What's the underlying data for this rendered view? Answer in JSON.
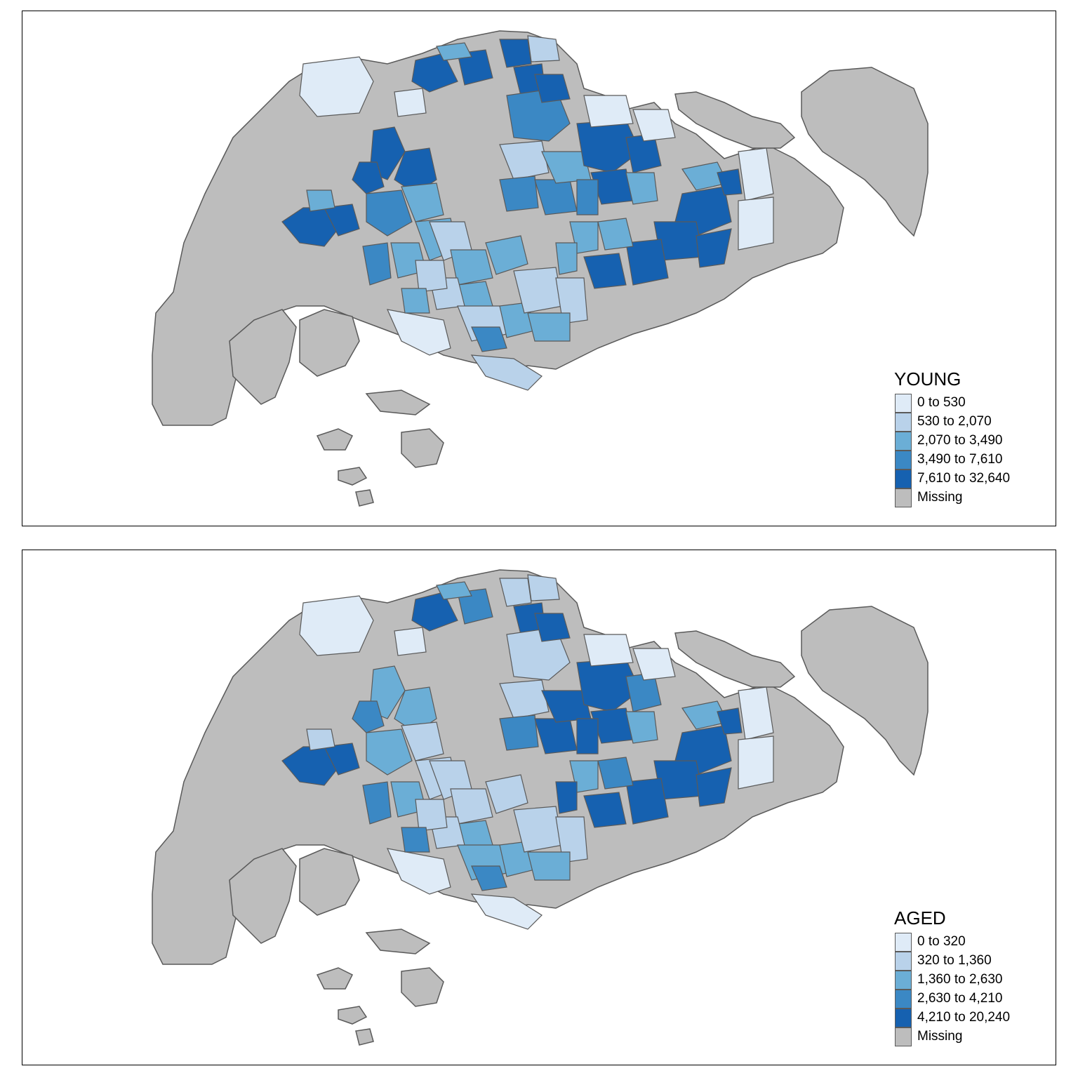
{
  "colors": {
    "c1": "#dfebf7",
    "c2": "#b9d2ea",
    "c3": "#6baed6",
    "c4": "#3b88c4",
    "c5": "#1661b0",
    "missing": "#bdbdbd",
    "border": "#5a5a5a"
  },
  "panels": [
    {
      "title": "YOUNG",
      "legend": [
        {
          "label": "0 to 530",
          "color": "#dfebf7"
        },
        {
          "label": "530 to 2,070",
          "color": "#b9d2ea"
        },
        {
          "label": "2,070 to 3,490",
          "color": "#6baed6"
        },
        {
          "label": "3,490 to 7,610",
          "color": "#3b88c4"
        },
        {
          "label": "7,610 to 32,640",
          "color": "#1661b0"
        },
        {
          "label": "Missing",
          "color": "#bdbdbd"
        }
      ]
    },
    {
      "title": "AGED",
      "legend": [
        {
          "label": "0 to 320",
          "color": "#dfebf7"
        },
        {
          "label": "320 to 1,360",
          "color": "#b9d2ea"
        },
        {
          "label": "1,360 to 2,630",
          "color": "#6baed6"
        },
        {
          "label": "2,630 to 4,210",
          "color": "#3b88c4"
        },
        {
          "label": "4,210 to 20,240",
          "color": "#1661b0"
        },
        {
          "label": "Missing",
          "color": "#bdbdbd"
        }
      ]
    }
  ]
}
